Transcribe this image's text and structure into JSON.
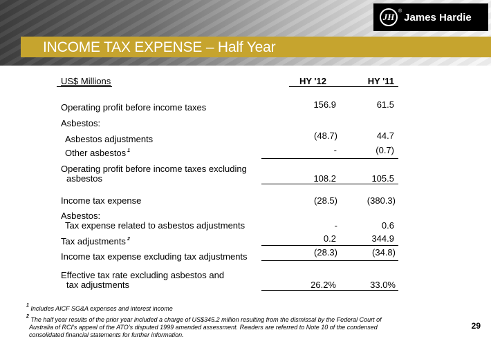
{
  "header": {
    "title": "INCOME TAX EXPENSE – Half Year",
    "logo_text": "James Hardie",
    "logo_monogram": "JH",
    "logo_reg": "®"
  },
  "table": {
    "unit_label": "US$ Millions",
    "columns": [
      "HY '12",
      "HY '11"
    ],
    "rows": [
      {
        "label": "Operating profit before income taxes",
        "hy12": "156.9",
        "hy11": "61.5"
      },
      {
        "label": "Asbestos:"
      },
      {
        "label": "Asbestos adjustments",
        "hy12": "(48.7)",
        "hy11": "44.7"
      },
      {
        "label": "Other asbestos",
        "note": "1",
        "hy12": "-",
        "hy11": "(0.7)"
      },
      {
        "label": "Operating profit before income taxes excluding",
        "label2": "asbestos",
        "hy12": "108.2",
        "hy11": "105.5"
      },
      {
        "label": "Income tax expense",
        "hy12": "(28.5)",
        "hy11": "(380.3)"
      },
      {
        "label": "Asbestos:",
        "label2": "Tax expense related to asbestos adjustments",
        "hy12": "-",
        "hy11": "0.6"
      },
      {
        "label": "Tax adjustments",
        "note": "2",
        "hy12": "0.2",
        "hy11": "344.9"
      },
      {
        "label": "Income tax expense excluding tax adjustments",
        "hy12": "(28.3)",
        "hy11": "(34.8)"
      },
      {
        "label": "Effective tax rate excluding asbestos and",
        "label2": "tax adjustments",
        "hy12": "26.2%",
        "hy11": "33.0%"
      }
    ]
  },
  "footnotes": {
    "n1_mark": "1",
    "n1": "Includes AICF SG&A expenses and  interest income",
    "n2_mark": "2",
    "n2_line1": "The half year results of the prior year included a charge of US$345.2 million resulting from the dismissal by the Federal Court of",
    "n2_line2": "Australia of RCI’s appeal of the ATO’s disputed 1999 amended assessment. Readers are referred to Note 10 of the condensed",
    "n2_line3": "consolidated  financial statements for further information."
  },
  "page_number": "29",
  "colors": {
    "title_band": "#c6a42e",
    "logo_bg": "#000000",
    "text": "#000000"
  }
}
